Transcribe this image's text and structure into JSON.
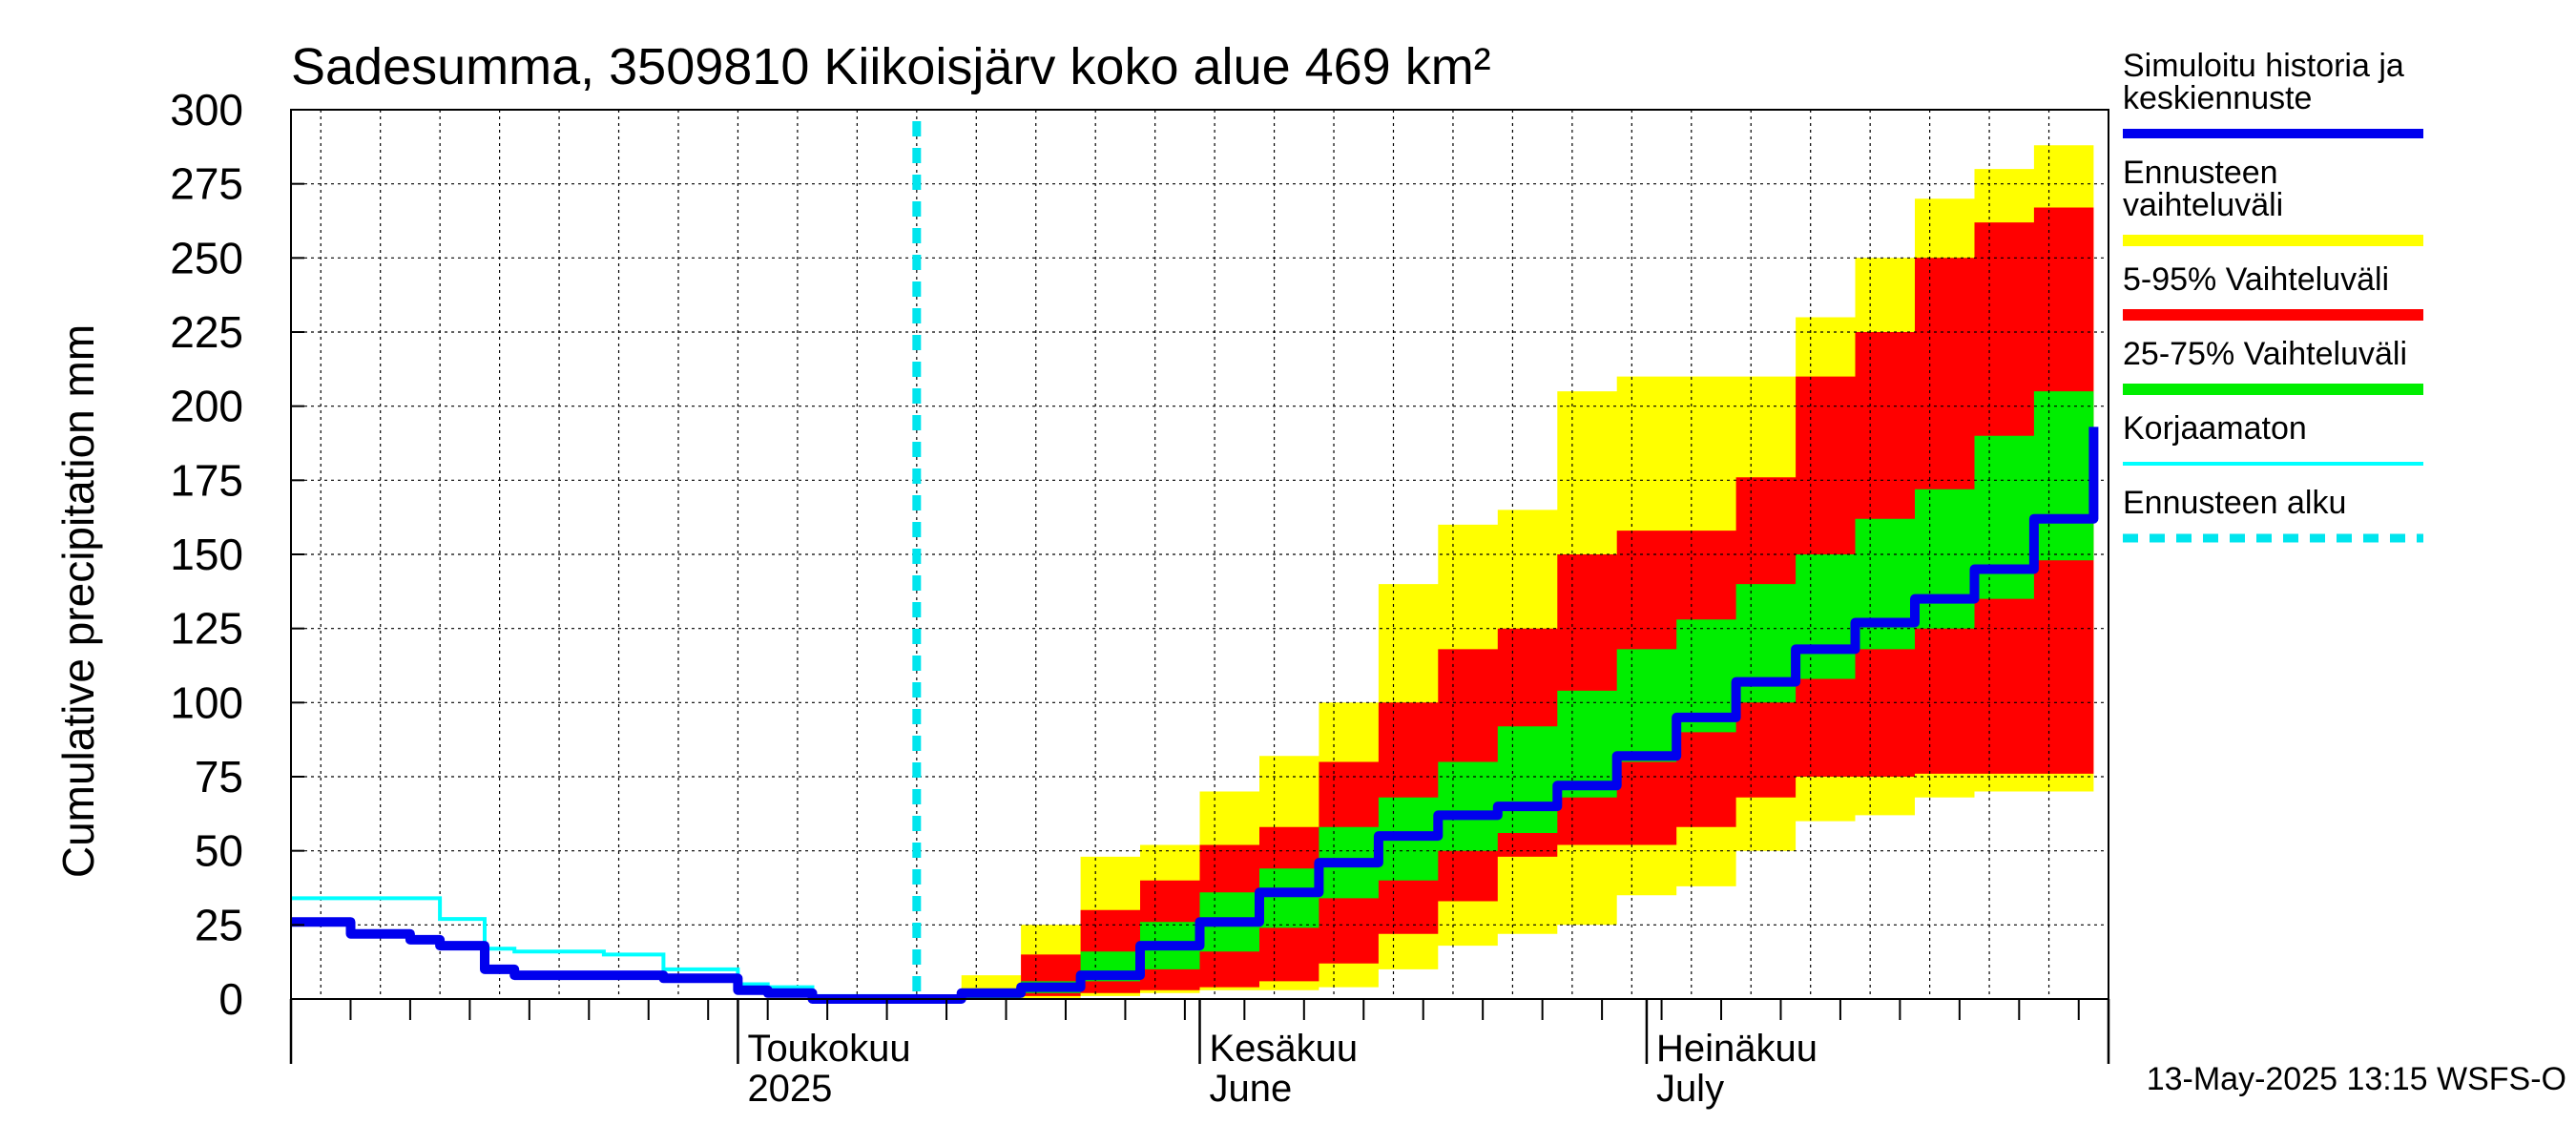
{
  "chart_data": {
    "type": "area",
    "title": "Sadesumma, 3509810 Kiikoisjärv koko alue 469 km²",
    "ylabel": "Cumulative precipitation    mm",
    "ylim": [
      0,
      300
    ],
    "yticks": [
      0,
      25,
      50,
      75,
      100,
      125,
      150,
      175,
      200,
      225,
      250,
      275,
      300
    ],
    "xlim": [
      "2025-04-01",
      "2025-08-01"
    ],
    "month_labels": [
      {
        "date": "2025-05-01",
        "line1": "Toukokuu",
        "line2": "2025"
      },
      {
        "date": "2025-06-01",
        "line1": "Kesäkuu",
        "line2": "June"
      },
      {
        "date": "2025-07-01",
        "line1": "Heinäkuu",
        "line2": "July"
      }
    ],
    "forecast_start": "2025-05-13",
    "footer": "13-May-2025 13:15 WSFS-O",
    "legend": [
      {
        "label": "Simuloitu historia ja keskiennuste",
        "color": "#0000ee",
        "style": "thick"
      },
      {
        "label": "Ennusteen vaihteluväli",
        "color": "#ffff00",
        "style": "band"
      },
      {
        "label": "5-95% Vaihteluväli",
        "color": "#ff0000",
        "style": "band"
      },
      {
        "label": "25-75% Vaihteluväli",
        "color": "#00ee00",
        "style": "band"
      },
      {
        "label": "Korjaamaton",
        "color": "#00ffff",
        "style": "thin"
      },
      {
        "label": "Ennusteen alku",
        "color": "#00e5ee",
        "style": "dashed"
      }
    ],
    "band_x": [
      "2025-05-13",
      "2025-05-16",
      "2025-05-20",
      "2025-05-24",
      "2025-05-28",
      "2025-06-01",
      "2025-06-05",
      "2025-06-09",
      "2025-06-13",
      "2025-06-17",
      "2025-06-21",
      "2025-06-25",
      "2025-06-29",
      "2025-07-03",
      "2025-07-07",
      "2025-07-11",
      "2025-07-15",
      "2025-07-19",
      "2025-07-23",
      "2025-07-27",
      "2025-07-31"
    ],
    "series": [
      {
        "name": "Ennusteen vaihteluväli",
        "role": "band",
        "color": "#ffff00",
        "lower": [
          0,
          0,
          0,
          1,
          2,
          3,
          3,
          4,
          10,
          18,
          22,
          25,
          35,
          38,
          50,
          60,
          62,
          68,
          70,
          70,
          70
        ],
        "upper": [
          0,
          8,
          25,
          48,
          52,
          70,
          82,
          100,
          140,
          160,
          165,
          205,
          210,
          210,
          210,
          230,
          250,
          270,
          280,
          288,
          288
        ]
      },
      {
        "name": "5-95% Vaihteluväli",
        "role": "band",
        "color": "#ff0000",
        "lower": [
          0,
          0,
          1,
          2,
          3,
          4,
          6,
          12,
          22,
          33,
          48,
          52,
          52,
          58,
          68,
          75,
          75,
          76,
          76,
          76,
          76
        ],
        "upper": [
          0,
          3,
          15,
          30,
          40,
          52,
          58,
          80,
          100,
          118,
          125,
          150,
          158,
          158,
          176,
          210,
          225,
          250,
          262,
          267,
          267
        ]
      },
      {
        "name": "25-75% Vaihteluväli",
        "role": "band",
        "color": "#00ee00",
        "lower": [
          0,
          0,
          2,
          6,
          10,
          16,
          24,
          34,
          40,
          50,
          56,
          68,
          80,
          90,
          100,
          108,
          118,
          125,
          135,
          148,
          150
        ],
        "upper": [
          0,
          2,
          6,
          16,
          26,
          36,
          44,
          58,
          68,
          80,
          92,
          104,
          118,
          128,
          140,
          150,
          162,
          172,
          190,
          205,
          225
        ]
      }
    ],
    "hist_x": [
      "2025-04-01",
      "2025-04-03",
      "2025-04-05",
      "2025-04-09",
      "2025-04-11",
      "2025-04-14",
      "2025-04-16",
      "2025-04-22",
      "2025-04-26",
      "2025-04-28",
      "2025-05-01",
      "2025-05-03",
      "2025-05-06",
      "2025-05-13"
    ],
    "uncorrected": [
      34,
      34,
      34,
      34,
      27,
      17,
      16,
      15,
      10,
      10,
      5,
      4,
      1,
      0
    ],
    "median_x": [
      "2025-04-01",
      "2025-04-03",
      "2025-04-05",
      "2025-04-09",
      "2025-04-11",
      "2025-04-14",
      "2025-04-16",
      "2025-04-22",
      "2025-04-26",
      "2025-04-28",
      "2025-05-01",
      "2025-05-03",
      "2025-05-06",
      "2025-05-13",
      "2025-05-16",
      "2025-05-20",
      "2025-05-24",
      "2025-05-28",
      "2025-06-01",
      "2025-06-05",
      "2025-06-09",
      "2025-06-13",
      "2025-06-17",
      "2025-06-21",
      "2025-06-25",
      "2025-06-29",
      "2025-07-03",
      "2025-07-07",
      "2025-07-11",
      "2025-07-15",
      "2025-07-19",
      "2025-07-23",
      "2025-07-27",
      "2025-07-31"
    ],
    "median": [
      26,
      26,
      22,
      20,
      18,
      10,
      8,
      8,
      7,
      7,
      3,
      2,
      0,
      0,
      2,
      4,
      8,
      18,
      26,
      36,
      46,
      55,
      62,
      65,
      72,
      82,
      95,
      107,
      118,
      127,
      135,
      145,
      162,
      193
    ]
  }
}
